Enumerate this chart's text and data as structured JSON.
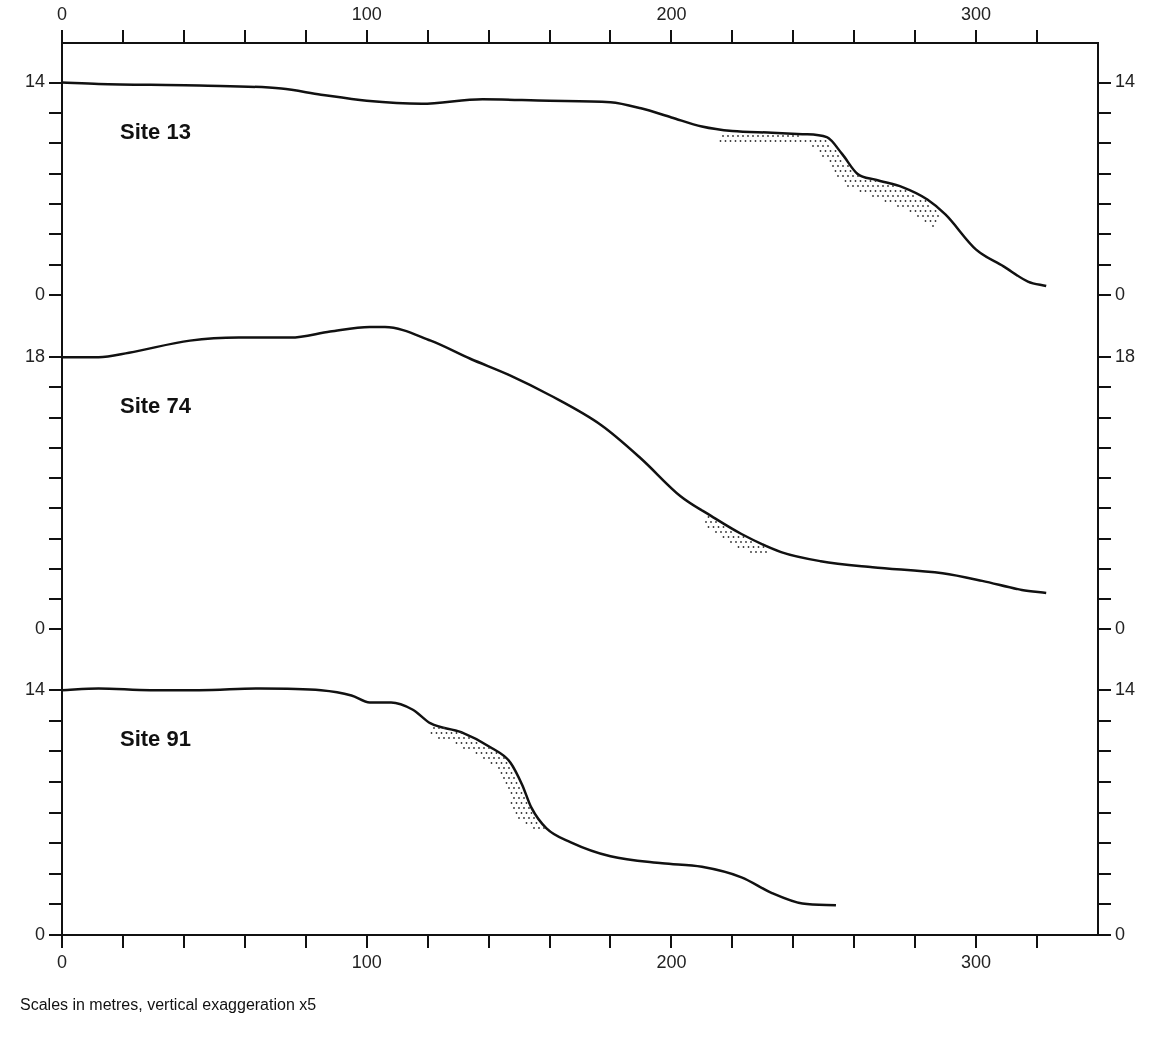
{
  "chart_data": [
    {
      "type": "line",
      "marker": "none",
      "annotations": [
        "Site 13"
      ],
      "xlim": [
        0,
        340
      ],
      "x2lim": [
        0,
        340
      ],
      "x2ticks": [
        0,
        {
          "value": 20,
          "label": null
        },
        {
          "value": 40,
          "label": null
        },
        {
          "value": 60,
          "label": null
        },
        {
          "value": 80,
          "label": null
        },
        100,
        {
          "value": 120,
          "label": null
        },
        {
          "value": 140,
          "label": null
        },
        {
          "value": 160,
          "label": null
        },
        {
          "value": 180,
          "label": null
        },
        200,
        {
          "value": 220,
          "label": null
        },
        {
          "value": 240,
          "label": null
        },
        {
          "value": 260,
          "label": null
        },
        {
          "value": 280,
          "label": null
        },
        300,
        {
          "value": 320,
          "label": null
        }
      ],
      "ylim": [
        0,
        16.6
      ],
      "yticks": [
        0,
        {
          "value": 2,
          "label": null
        },
        {
          "value": 4,
          "label": null
        },
        {
          "value": 6,
          "label": null
        },
        {
          "value": 8,
          "label": null
        },
        {
          "value": 10,
          "label": null
        },
        {
          "value": 12,
          "label": null
        },
        14
      ],
      "y2lim": [
        0,
        16.6
      ],
      "y2ticks": [
        0,
        {
          "value": 2,
          "label": null
        },
        {
          "value": 4,
          "label": null
        },
        {
          "value": 6,
          "label": null
        },
        {
          "value": 8,
          "label": null
        },
        {
          "value": 10,
          "label": null
        },
        {
          "value": 12,
          "label": null
        },
        14
      ],
      "tick_labels": "y",
      "series": [
        {
          "color": "#111111",
          "x": [
            0,
            12,
            45,
            72,
            85,
            100,
            118,
            138,
            160,
            180,
            190,
            200,
            210,
            220,
            233,
            243,
            251,
            256,
            261,
            267,
            276,
            284,
            290,
            300,
            309,
            317,
            323
          ],
          "values": [
            14.0,
            13.9,
            13.8,
            13.6,
            13.2,
            12.8,
            12.6,
            12.9,
            12.8,
            12.7,
            12.3,
            11.7,
            11.1,
            10.8,
            10.7,
            10.6,
            10.4,
            9.3,
            8.0,
            7.6,
            7.1,
            6.3,
            5.3,
            3.0,
            1.9,
            0.9,
            0.6
          ]
        }
      ]
    },
    {
      "type": "line",
      "marker": "none",
      "annotations": [
        "Site 74"
      ],
      "xlim": [
        0,
        340
      ],
      "ylim": [
        0,
        22
      ],
      "yticks": [
        0,
        {
          "value": 2,
          "label": null
        },
        {
          "value": 4,
          "label": null
        },
        {
          "value": 6,
          "label": null
        },
        {
          "value": 8,
          "label": null
        },
        {
          "value": 10,
          "label": null
        },
        {
          "value": 12,
          "label": null
        },
        {
          "value": 14,
          "label": null
        },
        {
          "value": 16,
          "label": null
        },
        18
      ],
      "y2lim": [
        0,
        22
      ],
      "y2ticks": [
        0,
        {
          "value": 2,
          "label": null
        },
        {
          "value": 4,
          "label": null
        },
        {
          "value": 6,
          "label": null
        },
        {
          "value": 8,
          "label": null
        },
        {
          "value": 10,
          "label": null
        },
        {
          "value": 12,
          "label": null
        },
        {
          "value": 14,
          "label": null
        },
        {
          "value": 16,
          "label": null
        },
        18
      ],
      "tick_labels": "y",
      "series": [
        {
          "color": "#111111",
          "x": [
            0,
            12,
            22,
            42,
            58,
            75,
            88,
            101,
            106,
            121,
            134,
            147,
            160,
            177,
            190,
            203,
            213,
            223,
            236,
            249,
            266,
            289,
            302,
            315,
            323
          ],
          "values": [
            18.0,
            18.0,
            18.3,
            19.1,
            19.3,
            19.3,
            19.7,
            20.0,
            20.0,
            19.1,
            17.9,
            16.8,
            15.5,
            13.5,
            11.3,
            8.8,
            7.5,
            6.3,
            5.1,
            4.5,
            4.1,
            3.7,
            3.2,
            2.6,
            2.4
          ]
        }
      ]
    },
    {
      "type": "line",
      "marker": "none",
      "annotations": [
        "Site 91",
        "Scales in metres, vertical exaggeration x5"
      ],
      "xlim": [
        0,
        340
      ],
      "xticks": [
        0,
        {
          "value": 20,
          "label": null
        },
        {
          "value": 40,
          "label": null
        },
        {
          "value": 60,
          "label": null
        },
        {
          "value": 80,
          "label": null
        },
        100,
        {
          "value": 120,
          "label": null
        },
        {
          "value": 140,
          "label": null
        },
        {
          "value": 160,
          "label": null
        },
        {
          "value": 180,
          "label": null
        },
        200,
        {
          "value": 220,
          "label": null
        },
        {
          "value": 240,
          "label": null
        },
        {
          "value": 260,
          "label": null
        },
        {
          "value": 280,
          "label": null
        },
        300,
        {
          "value": 320,
          "label": null
        }
      ],
      "ylim": [
        0,
        17.4
      ],
      "yticks": [
        0,
        {
          "value": 1.75,
          "label": null
        },
        {
          "value": 3.5,
          "label": null
        },
        {
          "value": 5.25,
          "label": null
        },
        {
          "value": 7,
          "label": null
        },
        {
          "value": 8.75,
          "label": null
        },
        {
          "value": 10.5,
          "label": null
        },
        {
          "value": 12.25,
          "label": null
        },
        14
      ],
      "y2lim": [
        0,
        17.4
      ],
      "y2ticks": [
        0,
        {
          "value": 1.75,
          "label": null
        },
        {
          "value": 3.5,
          "label": null
        },
        {
          "value": 5.25,
          "label": null
        },
        {
          "value": 7,
          "label": null
        },
        {
          "value": 8.75,
          "label": null
        },
        {
          "value": 10.5,
          "label": null
        },
        {
          "value": 12.25,
          "label": null
        },
        14
      ],
      "series": [
        {
          "color": "#111111",
          "x": [
            0,
            12,
            29,
            45,
            65,
            85,
            95,
            101,
            108,
            115,
            121,
            131,
            141,
            147,
            151,
            154,
            159,
            167,
            180,
            197,
            210,
            223,
            233,
            243,
            254
          ],
          "values": [
            14.0,
            14.1,
            14.0,
            14.0,
            14.1,
            14.0,
            13.7,
            13.3,
            13.3,
            12.9,
            12.1,
            11.6,
            10.7,
            9.9,
            8.6,
            7.3,
            6.1,
            5.3,
            4.5,
            4.1,
            3.9,
            3.3,
            2.4,
            1.8,
            1.7
          ]
        }
      ]
    }
  ]
}
